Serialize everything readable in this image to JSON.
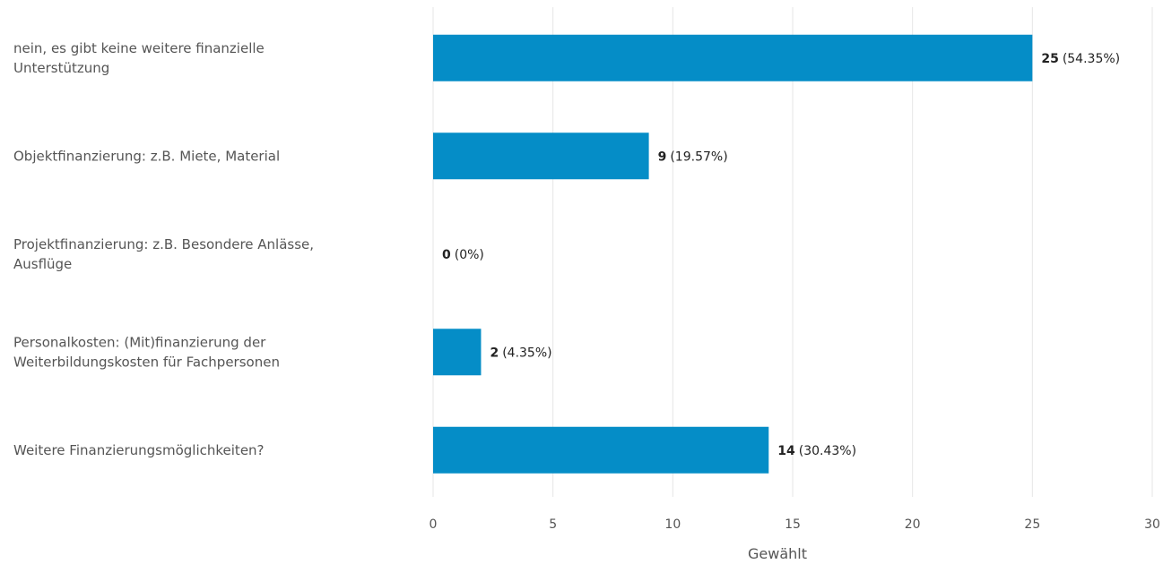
{
  "chart_data": {
    "type": "bar",
    "orientation": "horizontal",
    "categories": [
      [
        "nein, es gibt keine weitere finanzielle",
        "Unterstützung"
      ],
      [
        "Objektfinanzierung: z.B. Miete, Material"
      ],
      [
        "Projektfinanzierung: z.B. Besondere Anlässe,",
        "Ausflüge"
      ],
      [
        "Personalkosten: (Mit)finanzierung der",
        "Weiterbildungskosten für Fachpersonen"
      ],
      [
        "Weitere Finanzierungsmöglichkeiten?"
      ]
    ],
    "values": [
      25,
      9,
      0,
      2,
      14
    ],
    "percent_labels": [
      "(54.35%)",
      "(19.57%)",
      "(0%)",
      "(4.35%)",
      "(30.43%)"
    ],
    "xlabel": "Gewählt",
    "xlim": [
      0,
      30
    ],
    "xticks": [
      0,
      5,
      10,
      15,
      20,
      25,
      30
    ],
    "grid": true,
    "bar_color": "#058dc7"
  }
}
